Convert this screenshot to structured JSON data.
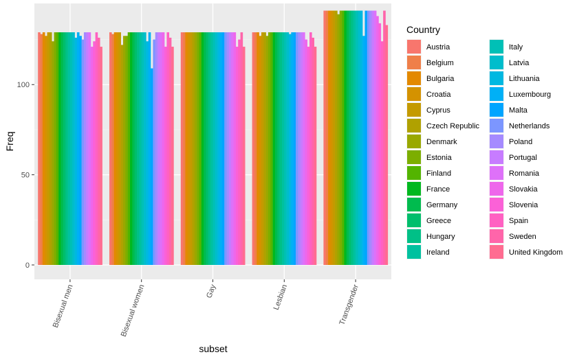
{
  "chart_data": {
    "type": "bar",
    "xlabel": "subset",
    "ylabel": "Freq",
    "ylim": [
      -8,
      145
    ],
    "y_ticks": [
      0,
      50,
      100
    ],
    "grid": true,
    "legend_title": "Country",
    "legend_position": "right",
    "categories": [
      "Bisexual men",
      "Bisexual women",
      "Gay",
      "Lesbian",
      "Transgender"
    ],
    "series": [
      {
        "name": "Austria",
        "color": "#F8766D",
        "values": [
          129,
          129,
          129,
          129,
          141
        ]
      },
      {
        "name": "Belgium",
        "color": "#EF7F49",
        "values": [
          128,
          128,
          129,
          129,
          141
        ]
      },
      {
        "name": "Bulgaria",
        "color": "#E38900",
        "values": [
          129,
          129,
          129,
          129,
          141
        ]
      },
      {
        "name": "Croatia",
        "color": "#D49200",
        "values": [
          127,
          129,
          129,
          127,
          141
        ]
      },
      {
        "name": "Cyprus",
        "color": "#C49A00",
        "values": [
          129,
          129,
          129,
          129,
          141
        ]
      },
      {
        "name": "Czech Republic",
        "color": "#B0A100",
        "values": [
          129,
          122,
          129,
          129,
          141
        ]
      },
      {
        "name": "Denmark",
        "color": "#99A800",
        "values": [
          124,
          127,
          129,
          127,
          139
        ]
      },
      {
        "name": "Estonia",
        "color": "#7CAE00",
        "values": [
          129,
          127,
          129,
          129,
          141
        ]
      },
      {
        "name": "Finland",
        "color": "#53B400",
        "values": [
          129,
          129,
          129,
          129,
          141
        ]
      },
      {
        "name": "France",
        "color": "#00B81F",
        "values": [
          129,
          129,
          129,
          129,
          141
        ]
      },
      {
        "name": "Germany",
        "color": "#00BB4E",
        "values": [
          129,
          129,
          129,
          129,
          141
        ]
      },
      {
        "name": "Greece",
        "color": "#00BE6C",
        "values": [
          129,
          129,
          129,
          129,
          141
        ]
      },
      {
        "name": "Hungary",
        "color": "#00C087",
        "values": [
          129,
          129,
          129,
          129,
          141
        ]
      },
      {
        "name": "Ireland",
        "color": "#00C19F",
        "values": [
          129,
          129,
          129,
          129,
          141
        ]
      },
      {
        "name": "Italy",
        "color": "#00C0B6",
        "values": [
          129,
          129,
          129,
          129,
          141
        ]
      },
      {
        "name": "Latvia",
        "color": "#00BDCC",
        "values": [
          129,
          129,
          129,
          129,
          141
        ]
      },
      {
        "name": "Lithuania",
        "color": "#00B8E1",
        "values": [
          126,
          124,
          129,
          128,
          141
        ]
      },
      {
        "name": "Luxembourg",
        "color": "#00B0F6",
        "values": [
          129,
          129,
          129,
          129,
          127
        ]
      },
      {
        "name": "Malta",
        "color": "#00A5FF",
        "values": [
          127,
          109,
          129,
          129,
          141
        ]
      },
      {
        "name": "Netherlands",
        "color": "#7C96FF",
        "values": [
          125,
          125,
          129,
          129,
          141
        ]
      },
      {
        "name": "Poland",
        "color": "#A58AFF",
        "values": [
          129,
          129,
          129,
          129,
          141
        ]
      },
      {
        "name": "Portugal",
        "color": "#C77CFF",
        "values": [
          129,
          129,
          129,
          129,
          141
        ]
      },
      {
        "name": "Romania",
        "color": "#DE71F9",
        "values": [
          129,
          129,
          129,
          129,
          141
        ]
      },
      {
        "name": "Slovakia",
        "color": "#EE67EB",
        "values": [
          121,
          129,
          129,
          125,
          138
        ]
      },
      {
        "name": "Slovenia",
        "color": "#FB61D7",
        "values": [
          124,
          121,
          121,
          121,
          134
        ]
      },
      {
        "name": "Spain",
        "color": "#FF61C2",
        "values": [
          129,
          129,
          125,
          129,
          124
        ]
      },
      {
        "name": "Sweden",
        "color": "#FF65AA",
        "values": [
          126,
          126,
          129,
          126,
          141
        ]
      },
      {
        "name": "United Kingdom",
        "color": "#FF6C91",
        "values": [
          121,
          121,
          121,
          121,
          133
        ]
      }
    ]
  }
}
